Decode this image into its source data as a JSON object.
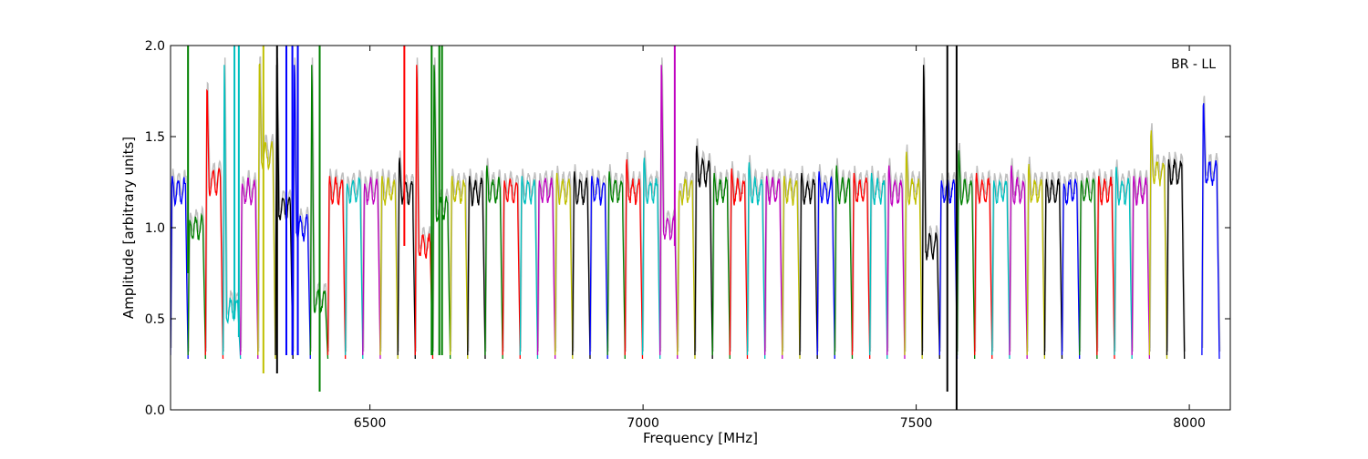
{
  "chart_data": {
    "type": "line",
    "title": "",
    "annotation": "BR - LL",
    "xlabel": "Frequency [MHz]",
    "ylabel": "Amplitude [arbitrary units]",
    "xlim": [
      6135,
      8075
    ],
    "ylim": [
      0.0,
      2.0
    ],
    "x_ticks": [
      6500,
      7000,
      7500,
      8000
    ],
    "x_tick_labels": [
      "6500",
      "7000",
      "7500",
      "8000"
    ],
    "y_ticks": [
      0.0,
      0.5,
      1.0,
      1.5,
      2.0
    ],
    "y_tick_labels": [
      "0.0",
      "0.5",
      "1.0",
      "1.5",
      "2.0"
    ],
    "grid": false,
    "legend": "none",
    "background_color": "#bfbfbf",
    "channel_colors": [
      "#0000ff",
      "#008000",
      "#ff0000",
      "#00bfbf",
      "#bf00bf",
      "#bfbf00",
      "#000000"
    ],
    "channel_width_mhz": 32,
    "channels": [
      {
        "start": 6135,
        "level": 1.2,
        "color": "#0000ff",
        "peak": 1.3
      },
      {
        "start": 6167,
        "level": 1.0,
        "color": "#008000",
        "peak": 1.05
      },
      {
        "start": 6199,
        "level": 1.25,
        "color": "#ff0000",
        "peak": 1.85
      },
      {
        "start": 6231,
        "level": 0.55,
        "color": "#00bfbf",
        "peak": 2.0
      },
      {
        "start": 6263,
        "level": 1.2,
        "color": "#bf00bf",
        "peak": 1.25
      },
      {
        "start": 6295,
        "level": 1.4,
        "color": "#bfbf00",
        "peak": 2.0
      },
      {
        "start": 6327,
        "level": 1.1,
        "color": "#000000",
        "peak": 2.0
      },
      {
        "start": 6359,
        "level": 1.0,
        "color": "#0000ff",
        "peak": 2.0
      },
      {
        "start": 6391,
        "level": 0.6,
        "color": "#008000",
        "peak": 2.0
      },
      {
        "start": 6423,
        "level": 1.2,
        "color": "#ff0000",
        "peak": 1.3
      },
      {
        "start": 6455,
        "level": 1.2,
        "color": "#00bfbf",
        "peak": 1.25
      },
      {
        "start": 6487,
        "level": 1.2,
        "color": "#bf00bf",
        "peak": 1.25
      },
      {
        "start": 6519,
        "level": 1.2,
        "color": "#bfbf00",
        "peak": 1.3
      },
      {
        "start": 6551,
        "level": 1.2,
        "color": "#000000",
        "peak": 1.42
      },
      {
        "start": 6583,
        "level": 0.9,
        "color": "#ff0000",
        "peak": 2.0
      },
      {
        "start": 6615,
        "level": 1.1,
        "color": "#008000",
        "peak": 2.0
      },
      {
        "start": 6647,
        "level": 1.2,
        "color": "#bfbf00",
        "peak": 1.3
      },
      {
        "start": 6679,
        "level": 1.2,
        "color": "#000000",
        "peak": 1.3
      },
      {
        "start": 6711,
        "level": 1.2,
        "color": "#008000",
        "peak": 1.37
      },
      {
        "start": 6743,
        "level": 1.2,
        "color": "#ff0000",
        "peak": 1.27
      },
      {
        "start": 6775,
        "level": 1.2,
        "color": "#00bfbf",
        "peak": 1.3
      },
      {
        "start": 6807,
        "level": 1.2,
        "color": "#bf00bf",
        "peak": 1.27
      },
      {
        "start": 6839,
        "level": 1.2,
        "color": "#bfbf00",
        "peak": 1.32
      },
      {
        "start": 6871,
        "level": 1.2,
        "color": "#000000",
        "peak": 1.33
      },
      {
        "start": 6903,
        "level": 1.2,
        "color": "#0000ff",
        "peak": 1.3
      },
      {
        "start": 6935,
        "level": 1.2,
        "color": "#008000",
        "peak": 1.33
      },
      {
        "start": 6967,
        "level": 1.2,
        "color": "#ff0000",
        "peak": 1.41
      },
      {
        "start": 6999,
        "level": 1.2,
        "color": "#00bfbf",
        "peak": 1.42
      },
      {
        "start": 7031,
        "level": 1.0,
        "color": "#bf00bf",
        "peak": 2.0
      },
      {
        "start": 7063,
        "level": 1.2,
        "color": "#bfbf00",
        "peak": 1.2
      },
      {
        "start": 7095,
        "level": 1.3,
        "color": "#000000",
        "peak": 1.48
      },
      {
        "start": 7127,
        "level": 1.2,
        "color": "#008000",
        "peak": 1.32
      },
      {
        "start": 7159,
        "level": 1.2,
        "color": "#ff0000",
        "peak": 1.35
      },
      {
        "start": 7191,
        "level": 1.2,
        "color": "#00bfbf",
        "peak": 1.39
      },
      {
        "start": 7223,
        "level": 1.2,
        "color": "#bf00bf",
        "peak": 1.3
      },
      {
        "start": 7255,
        "level": 1.2,
        "color": "#bfbf00",
        "peak": 1.3
      },
      {
        "start": 7287,
        "level": 1.2,
        "color": "#000000",
        "peak": 1.32
      },
      {
        "start": 7319,
        "level": 1.2,
        "color": "#0000ff",
        "peak": 1.33
      },
      {
        "start": 7351,
        "level": 1.2,
        "color": "#008000",
        "peak": 1.37
      },
      {
        "start": 7383,
        "level": 1.2,
        "color": "#ff0000",
        "peak": 1.32
      },
      {
        "start": 7415,
        "level": 1.2,
        "color": "#00bfbf",
        "peak": 1.32
      },
      {
        "start": 7447,
        "level": 1.2,
        "color": "#bf00bf",
        "peak": 1.37
      },
      {
        "start": 7479,
        "level": 1.2,
        "color": "#bfbf00",
        "peak": 1.46
      },
      {
        "start": 7511,
        "level": 0.9,
        "color": "#000000",
        "peak": 2.0
      },
      {
        "start": 7543,
        "level": 1.2,
        "color": "#0000ff",
        "peak": 1.27
      },
      {
        "start": 7575,
        "level": 1.2,
        "color": "#008000",
        "peak": 1.47
      },
      {
        "start": 7607,
        "level": 1.2,
        "color": "#ff0000",
        "peak": 1.32
      },
      {
        "start": 7639,
        "level": 1.2,
        "color": "#00bfbf",
        "peak": 1.27
      },
      {
        "start": 7671,
        "level": 1.2,
        "color": "#bf00bf",
        "peak": 1.37
      },
      {
        "start": 7703,
        "level": 1.2,
        "color": "#bfbf00",
        "peak": 1.38
      },
      {
        "start": 7735,
        "level": 1.2,
        "color": "#000000",
        "peak": 1.28
      },
      {
        "start": 7767,
        "level": 1.2,
        "color": "#0000ff",
        "peak": 1.25
      },
      {
        "start": 7799,
        "level": 1.2,
        "color": "#008000",
        "peak": 1.27
      },
      {
        "start": 7831,
        "level": 1.2,
        "color": "#ff0000",
        "peak": 1.3
      },
      {
        "start": 7863,
        "level": 1.2,
        "color": "#00bfbf",
        "peak": 1.36
      },
      {
        "start": 7895,
        "level": 1.2,
        "color": "#bf00bf",
        "peak": 1.3
      },
      {
        "start": 7927,
        "level": 1.3,
        "color": "#bfbf00",
        "peak": 1.58
      },
      {
        "start": 7959,
        "level": 1.3,
        "color": "#000000",
        "peak": 1.39
      },
      {
        "start": 8023,
        "level": 1.3,
        "color": "#0000ff",
        "peak": 1.76
      }
    ],
    "spikes": [
      {
        "x": 6167,
        "color": "#008000",
        "from": 0.75,
        "to": 2.0
      },
      {
        "x": 6252,
        "color": "#00bfbf",
        "from": 0.5,
        "to": 2.0
      },
      {
        "x": 6260,
        "color": "#00bfbf",
        "from": 0.4,
        "to": 2.0
      },
      {
        "x": 6305,
        "color": "#bfbf00",
        "from": 0.2,
        "to": 2.0
      },
      {
        "x": 6330,
        "color": "#000000",
        "from": 0.2,
        "to": 2.0
      },
      {
        "x": 6347,
        "color": "#0000ff",
        "from": 0.3,
        "to": 2.0
      },
      {
        "x": 6358,
        "color": "#0000ff",
        "from": 0.3,
        "to": 2.0
      },
      {
        "x": 6368,
        "color": "#0000ff",
        "from": 0.3,
        "to": 2.0
      },
      {
        "x": 6408,
        "color": "#008000",
        "from": 0.1,
        "to": 2.0
      },
      {
        "x": 6563,
        "color": "#ff0000",
        "from": 0.9,
        "to": 2.0
      },
      {
        "x": 6613,
        "color": "#008000",
        "from": 0.3,
        "to": 2.0
      },
      {
        "x": 6627,
        "color": "#008000",
        "from": 0.3,
        "to": 2.0
      },
      {
        "x": 6632,
        "color": "#008000",
        "from": 0.3,
        "to": 2.0
      },
      {
        "x": 7058,
        "color": "#bf00bf",
        "from": 0.9,
        "to": 2.0
      },
      {
        "x": 7557,
        "color": "#000000",
        "from": 0.1,
        "to": 2.0
      },
      {
        "x": 7574,
        "color": "#000000",
        "from": 0.0,
        "to": 2.0
      }
    ]
  }
}
